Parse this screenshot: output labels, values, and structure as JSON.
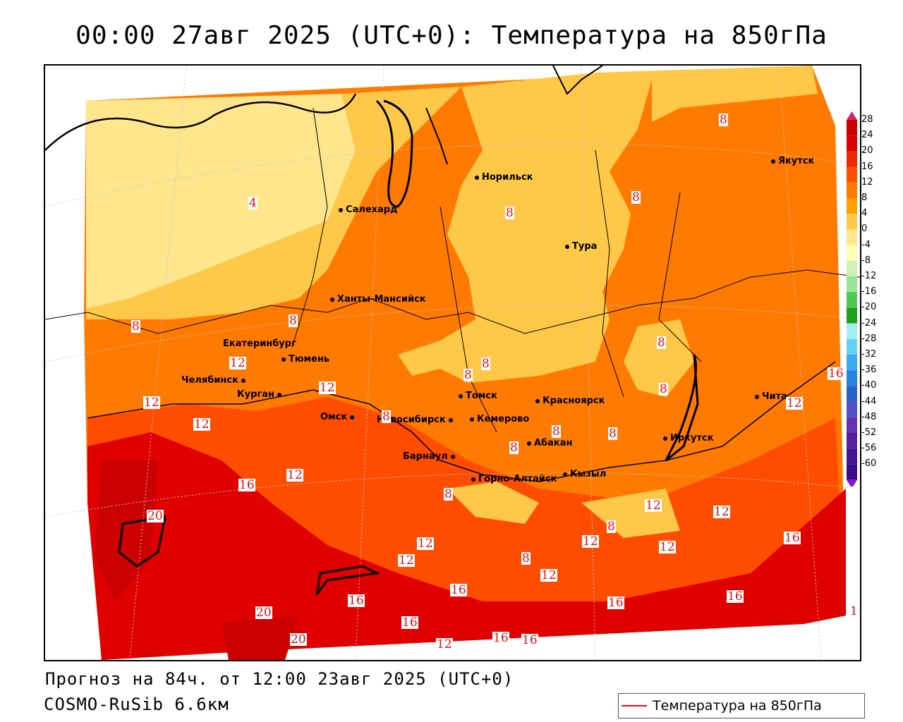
{
  "title": "00:00 27авг 2025 (UTC+0): Температура на 850гПа",
  "forecast_line": "Прогноз на 84ч. от 12:00 23авг 2025 (UTC+0)",
  "model_line": "COSMO-RuSib 6.6км",
  "legend": {
    "label": "Температура на 850гПа",
    "line_color": "#e01010"
  },
  "colorbar": {
    "labels": [
      "28",
      "24",
      "20",
      "16",
      "12",
      "8",
      "4",
      "0",
      "-4",
      "-8",
      "-12",
      "-16",
      "-20",
      "-24",
      "-28",
      "-32",
      "-36",
      "-40",
      "-44",
      "-48",
      "-52",
      "-56",
      "-60"
    ],
    "colors": [
      "#cc0000",
      "#e00000",
      "#f02800",
      "#ff4d00",
      "#ff7a00",
      "#ffa000",
      "#ffc848",
      "#ffe68c",
      "#ffffb4",
      "#d2f0b4",
      "#96e696",
      "#50c850",
      "#1ea01e",
      "#a0f0f0",
      "#64d2f0",
      "#3caaf0",
      "#2882e6",
      "#2864c8",
      "#5050c8",
      "#6432b4",
      "#5a1ea0",
      "#461496",
      "#3c0a8c"
    ]
  },
  "cities": [
    {
      "name": "Якутск"
    },
    {
      "name": "Норильск"
    },
    {
      "name": "Салехард"
    },
    {
      "name": "Тура"
    },
    {
      "name": "Ханты-Мансийск"
    },
    {
      "name": "Екатеринбург"
    },
    {
      "name": "Тюмень"
    },
    {
      "name": "Челябинск"
    },
    {
      "name": "Курган"
    },
    {
      "name": "Омск"
    },
    {
      "name": "Новосибирск"
    },
    {
      "name": "Томск"
    },
    {
      "name": "Кемерово"
    },
    {
      "name": "Красноярск"
    },
    {
      "name": "Абакан"
    },
    {
      "name": "Барнаул"
    },
    {
      "name": "Горно-Алтайск"
    },
    {
      "name": "Кызыл"
    },
    {
      "name": "Иркутск"
    },
    {
      "name": "Чита"
    }
  ],
  "isotherm_labels": [
    "4",
    "8",
    "8",
    "8",
    "8",
    "8",
    "8",
    "8",
    "8",
    "8",
    "8",
    "8",
    "8",
    "8",
    "8",
    "8",
    "8",
    "12",
    "12",
    "12",
    "12",
    "12",
    "12",
    "12",
    "12",
    "12",
    "12",
    "12",
    "12",
    "12",
    "12",
    "16",
    "16",
    "16",
    "16",
    "16",
    "16",
    "16",
    "16",
    "16",
    "20",
    "20",
    "20",
    "16",
    "1"
  ]
}
